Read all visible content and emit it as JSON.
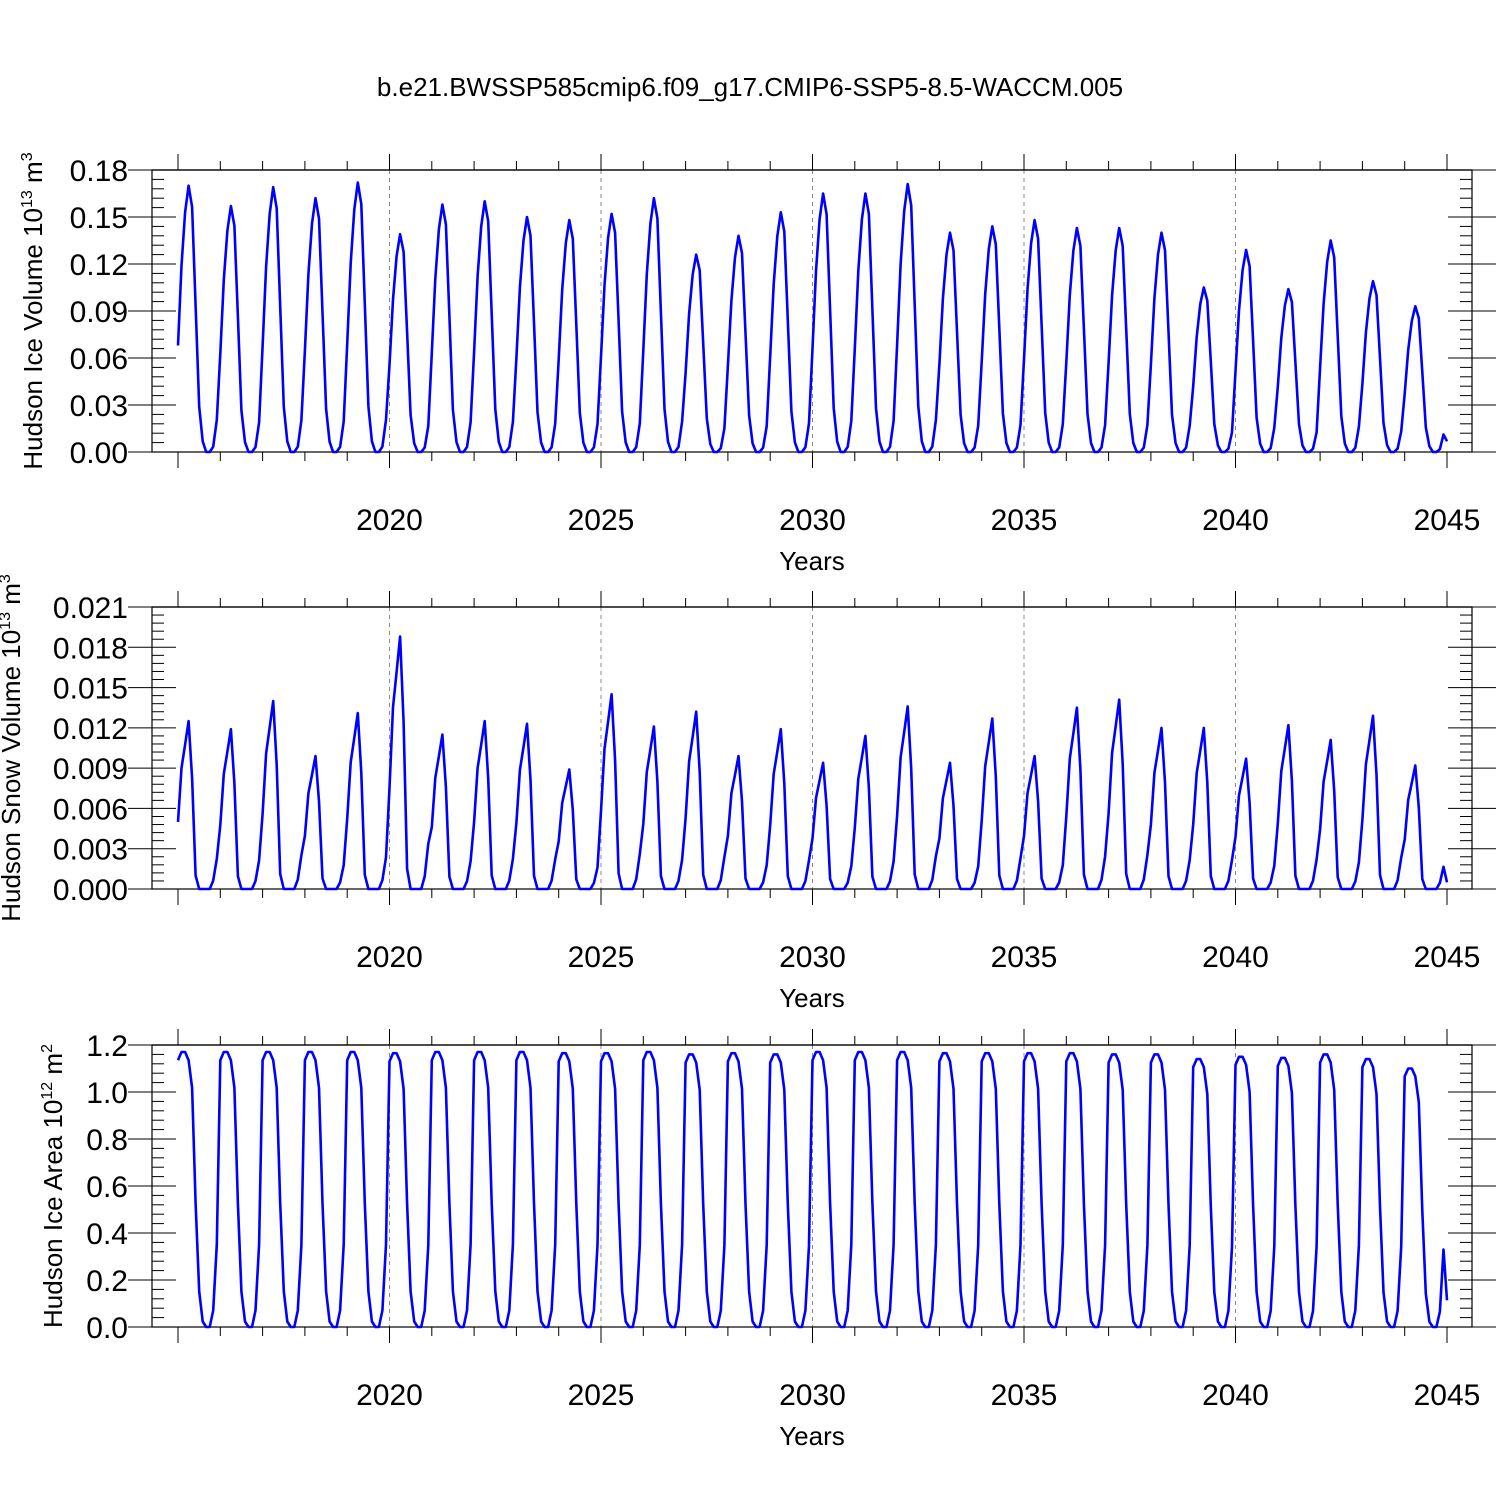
{
  "title": "b.e21.BWSSP585cmip6.f09_g17.CMIP6-SSP5-8.5-WACCM.005",
  "colors": {
    "line": "#0000ff",
    "axis": "#000000",
    "vgrid": "#888888"
  },
  "chart_data": [
    {
      "type": "line",
      "ylabel": {
        "text": "Hudson Ice Volume 10",
        "exp": "13",
        "unit": " m",
        "unit_exp": "3"
      },
      "xlabel": "Years",
      "xlim": [
        2015,
        2045
      ],
      "ylim": [
        0,
        0.18
      ],
      "yticks": [
        0.0,
        0.03,
        0.06,
        0.09,
        0.12,
        0.15,
        0.18
      ],
      "ytick_labels": [
        "0.00",
        "0.03",
        "0.06",
        "0.09",
        "0.12",
        "0.15",
        "0.18"
      ],
      "xticks": [
        2020,
        2025,
        2030,
        2035,
        2040,
        2045
      ],
      "xtick_labels": [
        "2020",
        "2025",
        "2030",
        "2035",
        "2040",
        "2045"
      ],
      "vgrid_at": [
        2020,
        2025,
        2030,
        2035,
        2040
      ],
      "start_year": 2015,
      "annual_peaks": [
        0.17,
        0.157,
        0.169,
        0.162,
        0.172,
        0.139,
        0.158,
        0.16,
        0.15,
        0.148,
        0.152,
        0.162,
        0.126,
        0.138,
        0.153,
        0.165,
        0.165,
        0.171,
        0.14,
        0.144,
        0.148,
        0.143,
        0.143,
        0.14,
        0.105,
        0.129,
        0.104,
        0.135,
        0.109,
        0.093
      ]
    },
    {
      "type": "line",
      "ylabel": {
        "text": "Hudson Snow Volume 10",
        "exp": "13",
        "unit": " m",
        "unit_exp": "3"
      },
      "xlabel": "Years",
      "xlim": [
        2015,
        2045
      ],
      "ylim": [
        0,
        0.021
      ],
      "yticks": [
        0.0,
        0.003,
        0.006,
        0.009,
        0.012,
        0.015,
        0.018,
        0.021
      ],
      "ytick_labels": [
        "0.000",
        "0.003",
        "0.006",
        "0.009",
        "0.012",
        "0.015",
        "0.018",
        "0.021"
      ],
      "xticks": [
        2020,
        2025,
        2030,
        2035,
        2040,
        2045
      ],
      "xtick_labels": [
        "2020",
        "2025",
        "2030",
        "2035",
        "2040",
        "2045"
      ],
      "vgrid_at": [
        2020,
        2025,
        2030,
        2035,
        2040
      ],
      "start_year": 2015,
      "annual_peaks": [
        0.0125,
        0.0119,
        0.014,
        0.0099,
        0.0131,
        0.0188,
        0.0115,
        0.0125,
        0.0123,
        0.0089,
        0.0145,
        0.0121,
        0.0132,
        0.0099,
        0.0119,
        0.0094,
        0.0114,
        0.0136,
        0.0094,
        0.0127,
        0.0099,
        0.0135,
        0.0141,
        0.012,
        0.012,
        0.0097,
        0.0122,
        0.0111,
        0.0129,
        0.0092
      ]
    },
    {
      "type": "line",
      "ylabel": {
        "text": "Hudson Ice Area 10",
        "exp": "12",
        "unit": " m",
        "unit_exp": "2"
      },
      "xlabel": "Years",
      "xlim": [
        2015,
        2045
      ],
      "ylim": [
        0,
        1.2
      ],
      "yticks": [
        0.0,
        0.2,
        0.4,
        0.6,
        0.8,
        1.0,
        1.2
      ],
      "ytick_labels": [
        "0.0",
        "0.2",
        "0.4",
        "0.6",
        "0.8",
        "1.0",
        "1.2"
      ],
      "xticks": [
        2020,
        2025,
        2030,
        2035,
        2040,
        2045
      ],
      "xtick_labels": [
        "2020",
        "2025",
        "2030",
        "2035",
        "2040",
        "2045"
      ],
      "vgrid_at": [
        2020,
        2025,
        2030,
        2035,
        2040
      ],
      "start_year": 2015,
      "annual_peaks": [
        1.17,
        1.17,
        1.17,
        1.17,
        1.17,
        1.165,
        1.17,
        1.17,
        1.17,
        1.165,
        1.165,
        1.17,
        1.16,
        1.165,
        1.16,
        1.17,
        1.17,
        1.17,
        1.165,
        1.165,
        1.165,
        1.165,
        1.16,
        1.16,
        1.14,
        1.15,
        1.145,
        1.16,
        1.14,
        1.1
      ]
    }
  ]
}
